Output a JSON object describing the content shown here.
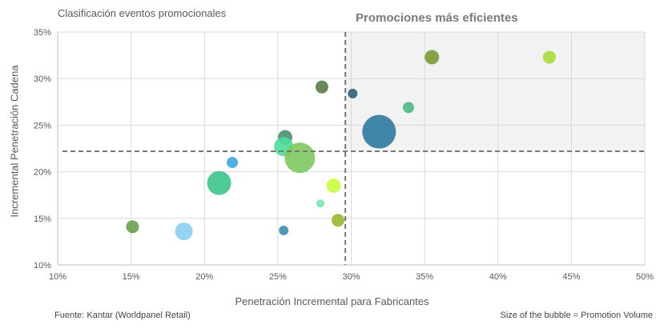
{
  "chart_data": {
    "type": "scatter",
    "subtype": "bubble",
    "title": "Clasificación eventos promocionales",
    "highlight_label": "Promociones más eficientes",
    "xlabel": "Penetración Incremental para Fabricantes",
    "ylabel": "Incremental  Penetración Cadena",
    "xlim": [
      10,
      50
    ],
    "ylim": [
      10,
      35
    ],
    "xticks": [
      "10%",
      "15%",
      "20%",
      "25%",
      "30%",
      "35%",
      "40%",
      "45%",
      "50%"
    ],
    "yticks": [
      "10%",
      "15%",
      "20%",
      "25%",
      "30%",
      "35%"
    ],
    "xtick_values": [
      10,
      15,
      20,
      25,
      30,
      35,
      40,
      45,
      50
    ],
    "ytick_values": [
      10,
      15,
      20,
      25,
      30,
      35
    ],
    "grid": true,
    "threshold_x": 29.6,
    "threshold_y": 22.2,
    "source": "Fuente: Kantar (Worldpanel Retail)",
    "size_note": "Size of the bubble = Promotion Volume",
    "bubbles": [
      {
        "x": 15.1,
        "y": 14.1,
        "size": 64,
        "color": "#6a9e4c"
      },
      {
        "x": 18.6,
        "y": 13.6,
        "size": 121,
        "color": "#87d0f0"
      },
      {
        "x": 21.0,
        "y": 18.8,
        "size": 225,
        "color": "#3cc38c"
      },
      {
        "x": 21.9,
        "y": 21.0,
        "size": 49,
        "color": "#3aa9e0"
      },
      {
        "x": 25.5,
        "y": 23.7,
        "size": 81,
        "color": "#4a9070"
      },
      {
        "x": 25.4,
        "y": 22.7,
        "size": 144,
        "color": "#4ddb9a"
      },
      {
        "x": 26.5,
        "y": 21.5,
        "size": 361,
        "color": "#80c860"
      },
      {
        "x": 25.4,
        "y": 13.7,
        "size": 36,
        "color": "#3d8db0"
      },
      {
        "x": 28.0,
        "y": 29.1,
        "size": 64,
        "color": "#5a7a45"
      },
      {
        "x": 27.9,
        "y": 16.6,
        "size": 25,
        "color": "#78e8b0"
      },
      {
        "x": 28.8,
        "y": 18.5,
        "size": 81,
        "color": "#c8ff40"
      },
      {
        "x": 29.1,
        "y": 14.8,
        "size": 64,
        "color": "#98b830"
      },
      {
        "x": 30.1,
        "y": 28.4,
        "size": 36,
        "color": "#2d5f7a"
      },
      {
        "x": 31.9,
        "y": 24.3,
        "size": 441,
        "color": "#2e7aa0"
      },
      {
        "x": 33.9,
        "y": 26.9,
        "size": 49,
        "color": "#4db885"
      },
      {
        "x": 35.5,
        "y": 32.3,
        "size": 81,
        "color": "#7a9a35"
      },
      {
        "x": 43.5,
        "y": 32.3,
        "size": 64,
        "color": "#a8dc38"
      }
    ]
  }
}
